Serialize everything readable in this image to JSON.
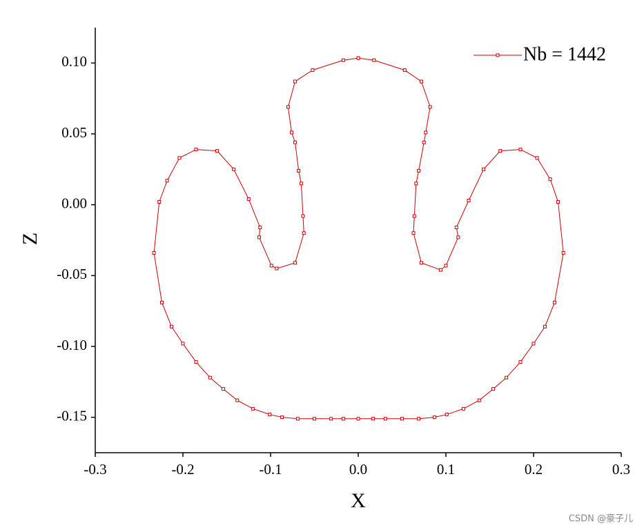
{
  "chart_data": {
    "type": "line",
    "xlabel": "X",
    "ylabel": "Z",
    "xlim": [
      -0.3,
      0.3
    ],
    "ylim": [
      -0.175,
      0.125
    ],
    "xticks": [
      -0.3,
      -0.2,
      -0.1,
      {
        "value": 0,
        "label": "0.0"
      },
      0.1,
      0.2,
      0.3
    ],
    "yticks": [
      {
        "value": 0.1,
        "label": "0.10"
      },
      0.05,
      {
        "value": 0,
        "label": "0.00"
      },
      -0.05,
      {
        "value": -0.1,
        "label": "-0.10"
      },
      -0.15
    ],
    "legend": "upper right",
    "series": [
      {
        "name": "Nb = 1442",
        "color": "#cc0000",
        "x": [
          0,
          0.018,
          0.053,
          0.072,
          0.082,
          0.077,
          0.075,
          0.069,
          0.066,
          0.064,
          0.063,
          0.072,
          0.094,
          0.1,
          0.114,
          0.112,
          0.126,
          0.143,
          0.162,
          0.185,
          0.204,
          0.219,
          0.228,
          0.234,
          0.224,
          0.213,
          0.2,
          0.185,
          0.169,
          0.154,
          0.138,
          0.12,
          0.101,
          0.087,
          0.069,
          0.05,
          0.031,
          0.017,
          0,
          -0.017,
          -0.031,
          -0.05,
          -0.069,
          -0.087,
          -0.101,
          -0.12,
          -0.138,
          -0.154,
          -0.169,
          -0.185,
          -0.2,
          -0.213,
          -0.224,
          -0.233,
          -0.227,
          -0.218,
          -0.204,
          -0.185,
          -0.161,
          -0.142,
          -0.125,
          -0.112,
          -0.113,
          -0.099,
          -0.093,
          -0.072,
          -0.062,
          -0.063,
          -0.065,
          -0.068,
          -0.072,
          -0.076,
          -0.08,
          -0.072,
          -0.052,
          -0.017,
          0
        ],
        "values": [
          0.1035,
          0.102,
          0.095,
          0.087,
          0.069,
          0.051,
          0.044,
          0.024,
          0.015,
          -0.008,
          -0.02,
          -0.041,
          -0.046,
          -0.043,
          -0.023,
          -0.016,
          0.003,
          0.025,
          0.038,
          0.039,
          0.033,
          0.018,
          0.002,
          -0.034,
          -0.069,
          -0.086,
          -0.098,
          -0.111,
          -0.122,
          -0.13,
          -0.138,
          -0.144,
          -0.148,
          -0.15,
          -0.151,
          -0.151,
          -0.151,
          -0.151,
          -0.151,
          -0.151,
          -0.151,
          -0.151,
          -0.151,
          -0.15,
          -0.148,
          -0.144,
          -0.138,
          -0.13,
          -0.122,
          -0.111,
          -0.098,
          -0.086,
          -0.069,
          -0.034,
          0.002,
          0.017,
          0.033,
          0.039,
          0.038,
          0.025,
          0.004,
          -0.016,
          -0.023,
          -0.043,
          -0.045,
          -0.041,
          -0.02,
          -0.008,
          0.015,
          0.024,
          0.044,
          0.051,
          0.069,
          0.087,
          0.095,
          0.102,
          0.1035
        ]
      }
    ]
  },
  "watermark": "CSDN @豪子儿"
}
